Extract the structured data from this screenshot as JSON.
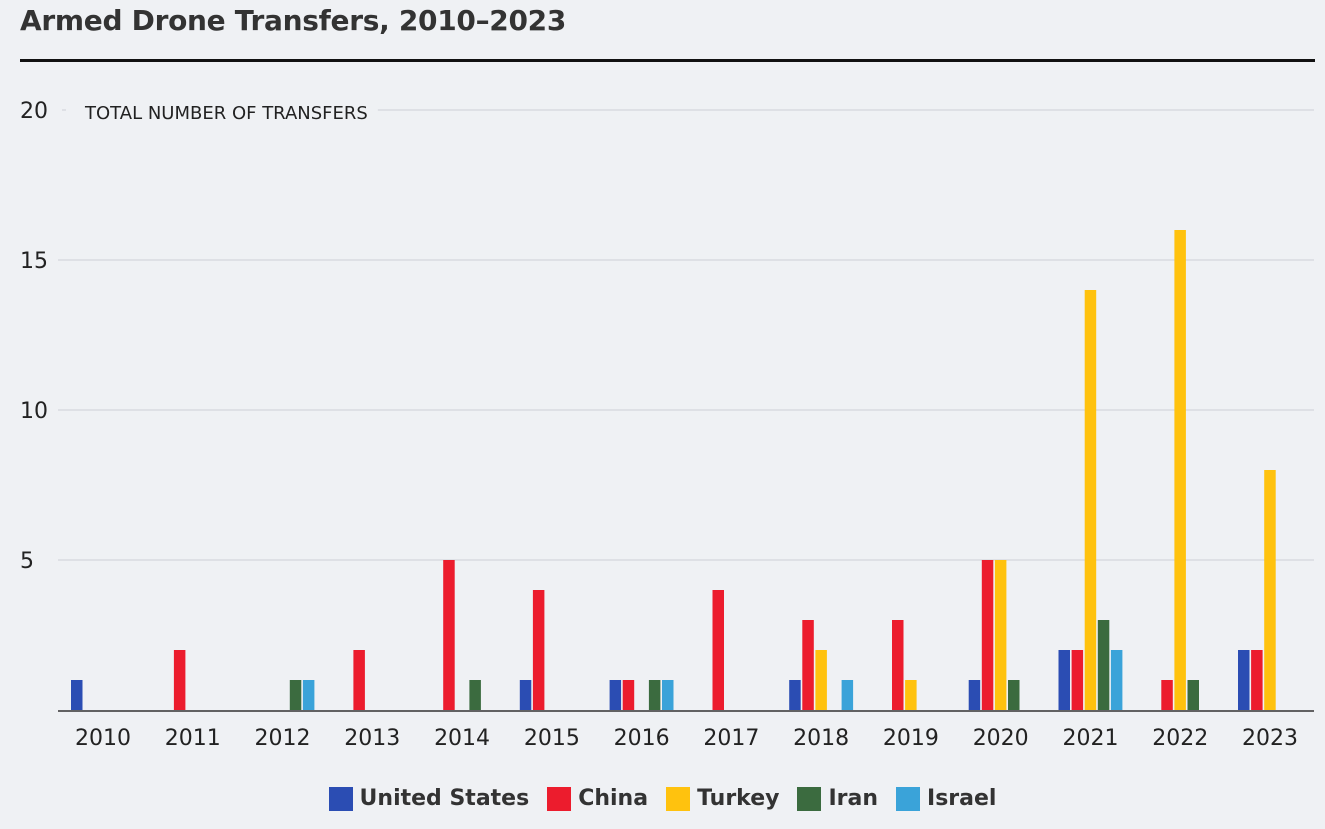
{
  "chart_data": {
    "type": "bar",
    "title": "Armed Drone Transfers, 2010–2023",
    "ylabel": "TOTAL NUMBER OF TRANSFERS",
    "xlabel": "",
    "ylim": [
      0,
      20
    ],
    "yticks": [
      5,
      10,
      15,
      20
    ],
    "grid": true,
    "legend": "bottom-center",
    "categories": [
      "2010",
      "2011",
      "2012",
      "2013",
      "2014",
      "2015",
      "2016",
      "2017",
      "2018",
      "2019",
      "2020",
      "2021",
      "2022",
      "2023"
    ],
    "series": [
      {
        "name": "United States",
        "color": "#2b4db3",
        "values": [
          1,
          0,
          0,
          0,
          0,
          1,
          1,
          0,
          1,
          0,
          1,
          2,
          0,
          2
        ]
      },
      {
        "name": "China",
        "color": "#ec1c2d",
        "values": [
          0,
          2,
          0,
          2,
          5,
          4,
          1,
          4,
          3,
          3,
          5,
          2,
          1,
          2
        ]
      },
      {
        "name": "Turkey",
        "color": "#ffc20e",
        "values": [
          0,
          0,
          0,
          0,
          0,
          0,
          0,
          0,
          2,
          1,
          5,
          14,
          16,
          8
        ]
      },
      {
        "name": "Iran",
        "color": "#3b6b3f",
        "values": [
          0,
          0,
          1,
          0,
          1,
          0,
          1,
          0,
          0,
          0,
          1,
          3,
          1,
          0
        ]
      },
      {
        "name": "Israel",
        "color": "#3aa3d9",
        "values": [
          0,
          0,
          1,
          0,
          0,
          0,
          1,
          0,
          1,
          0,
          0,
          2,
          0,
          0
        ]
      }
    ]
  }
}
